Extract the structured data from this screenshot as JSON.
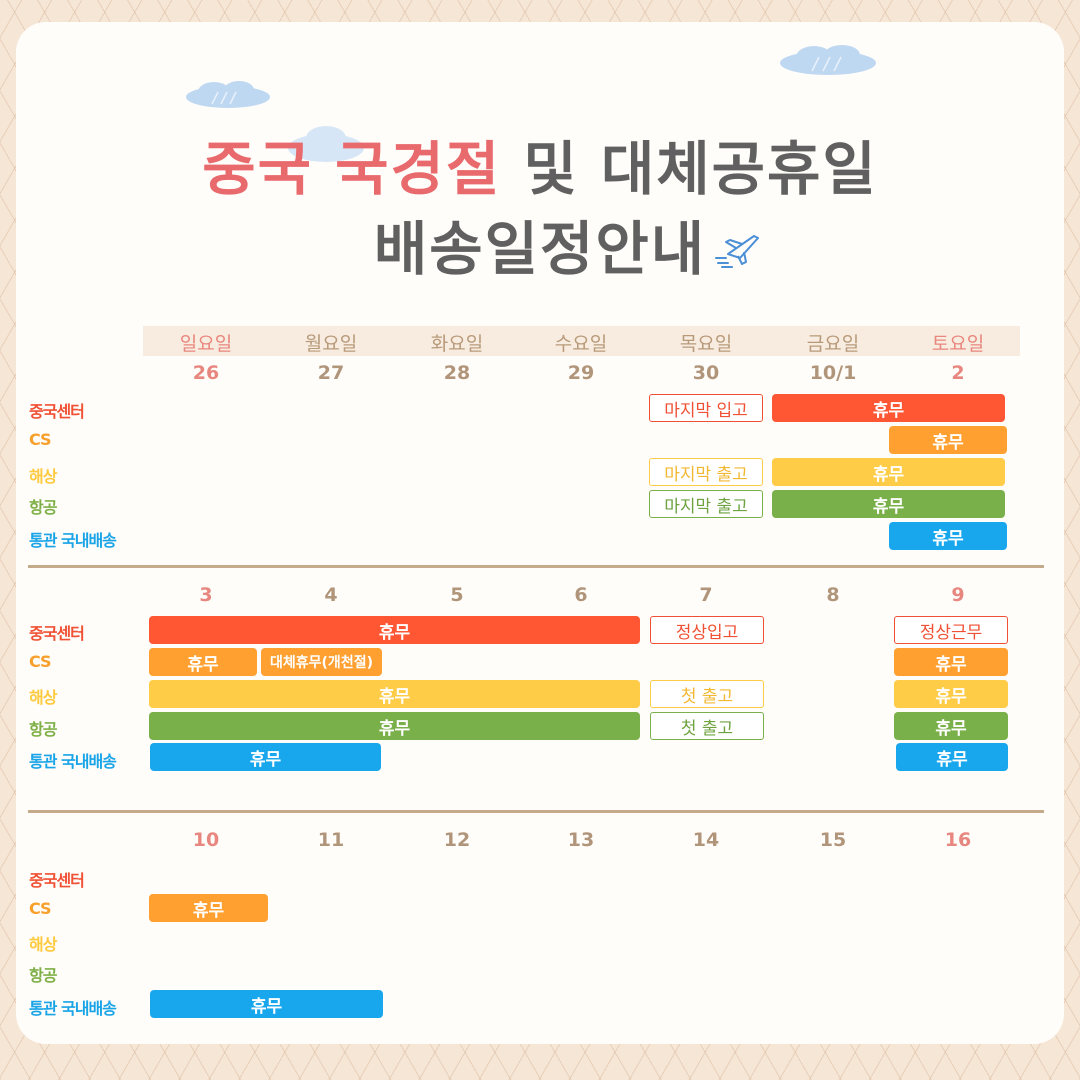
{
  "title": {
    "line1_red": "중국 국경절",
    "line1_rest": " 및 대체공휴일",
    "line2": "배송일정안내"
  },
  "icons": [
    "cloud-icon",
    "airplane-icon"
  ],
  "colors": {
    "center": "#ff5634",
    "cs": "#ffa030",
    "sea": "#ffcc47",
    "air": "#7ab04a",
    "customs": "#18a7ed",
    "title_red": "#e96a6d",
    "title_gray": "#606060"
  },
  "weekdays": [
    "일요일",
    "월요일",
    "화요일",
    "수요일",
    "목요일",
    "금요일",
    "토요일"
  ],
  "row_labels": {
    "center": "중국센터",
    "cs": "CS",
    "sea": "해상",
    "air": "항공",
    "customs": "통관 국내배송"
  },
  "weeks": [
    {
      "dates": [
        "26",
        "27",
        "28",
        "29",
        "30",
        "10/1",
        "2"
      ],
      "center": [
        {
          "label": "마지막 입고",
          "style": "outline"
        },
        {
          "label": "휴무",
          "style": "fill"
        }
      ],
      "cs": [
        {
          "label": "휴무",
          "style": "fill"
        }
      ],
      "sea": [
        {
          "label": "마지막 출고",
          "style": "outline"
        },
        {
          "label": "휴무",
          "style": "fill"
        }
      ],
      "air": [
        {
          "label": "마지막 출고",
          "style": "outline"
        },
        {
          "label": "휴무",
          "style": "fill"
        }
      ],
      "customs": [
        {
          "label": "휴무",
          "style": "fill"
        }
      ]
    },
    {
      "dates": [
        "3",
        "4",
        "5",
        "6",
        "7",
        "8",
        "9"
      ],
      "center": [
        {
          "label": "휴무",
          "style": "fill"
        },
        {
          "label": "정상입고",
          "style": "outline"
        },
        {
          "label": "정상근무",
          "style": "outline"
        }
      ],
      "cs": [
        {
          "label": "휴무",
          "style": "fill"
        },
        {
          "label": "대체휴무(개천절)",
          "style": "fill"
        },
        {
          "label": "휴무",
          "style": "fill"
        }
      ],
      "sea": [
        {
          "label": "휴무",
          "style": "fill"
        },
        {
          "label": "첫 출고",
          "style": "outline"
        },
        {
          "label": "휴무",
          "style": "fill"
        }
      ],
      "air": [
        {
          "label": "휴무",
          "style": "fill"
        },
        {
          "label": "첫 출고",
          "style": "outline"
        },
        {
          "label": "휴무",
          "style": "fill"
        }
      ],
      "customs": [
        {
          "label": "휴무",
          "style": "fill"
        },
        {
          "label": "휴무",
          "style": "fill"
        }
      ]
    },
    {
      "dates": [
        "10",
        "11",
        "12",
        "13",
        "14",
        "15",
        "16"
      ],
      "cs": [
        {
          "label": "휴무",
          "style": "fill"
        }
      ],
      "customs": [
        {
          "label": "휴무",
          "style": "fill"
        }
      ]
    }
  ]
}
